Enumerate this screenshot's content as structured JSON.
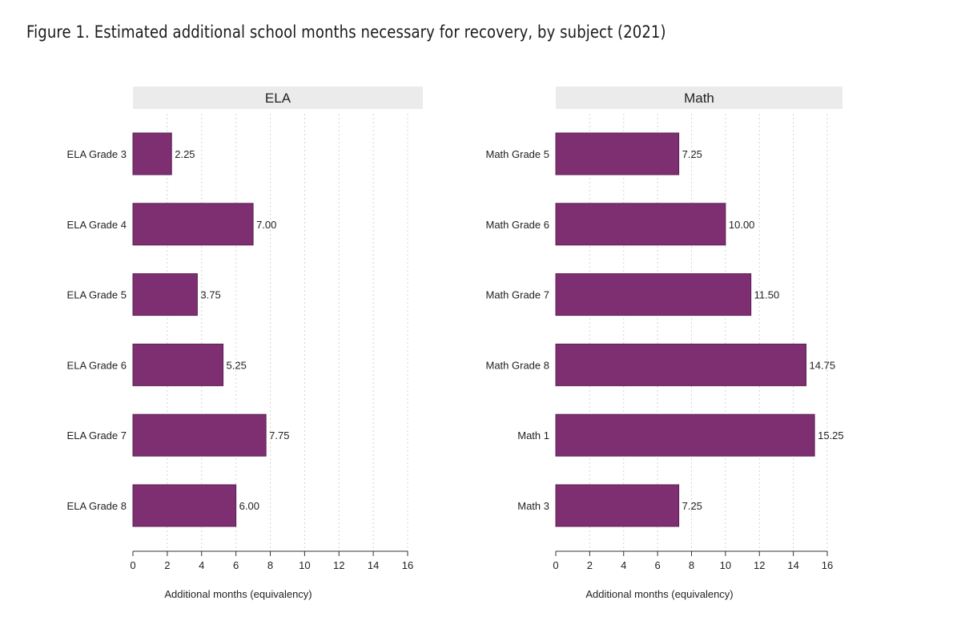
{
  "figure": {
    "title": "Figure 1. Estimated additional school months necessary for recovery, by subject (2021)"
  },
  "colors": {
    "bar": "#7e2f72",
    "bar_stroke": "#5a1f52",
    "header_bg": "#ebebeb",
    "grid": "#d4d4d4"
  },
  "chart_data": [
    {
      "type": "bar",
      "orientation": "horizontal",
      "title": "ELA",
      "categories": [
        "ELA Grade 3",
        "ELA Grade 4",
        "ELA Grade 5",
        "ELA Grade 6",
        "ELA Grade 7",
        "ELA Grade 8"
      ],
      "values": [
        2.25,
        7.0,
        3.75,
        5.25,
        7.75,
        6.0
      ],
      "value_labels": [
        "2.25",
        "7.00",
        "3.75",
        "5.25",
        "7.75",
        "6.00"
      ],
      "xlabel": "Additional months (equivalency)",
      "xlim": [
        0,
        16
      ],
      "xticks": [
        0,
        2,
        4,
        6,
        8,
        10,
        12,
        14,
        16
      ],
      "grid": "vertical dotted"
    },
    {
      "type": "bar",
      "orientation": "horizontal",
      "title": "Math",
      "categories": [
        "Math Grade 5",
        "Math Grade 6",
        "Math Grade 7",
        "Math Grade 8",
        "Math 1",
        "Math 3"
      ],
      "values": [
        7.25,
        10.0,
        11.5,
        14.75,
        15.25,
        7.25
      ],
      "value_labels": [
        "7.25",
        "10.00",
        "11.50",
        "14.75",
        "15.25",
        "7.25"
      ],
      "xlabel": "Additional months (equivalency)",
      "xlim": [
        0,
        16
      ],
      "xticks": [
        0,
        2,
        4,
        6,
        8,
        10,
        12,
        14,
        16
      ],
      "grid": "vertical dotted"
    }
  ]
}
